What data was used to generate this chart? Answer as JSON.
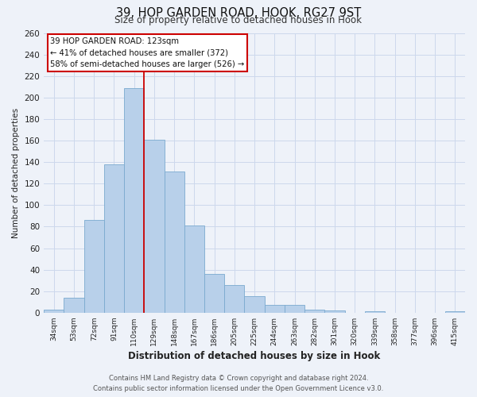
{
  "title": "39, HOP GARDEN ROAD, HOOK, RG27 9ST",
  "subtitle": "Size of property relative to detached houses in Hook",
  "xlabel": "Distribution of detached houses by size in Hook",
  "ylabel": "Number of detached properties",
  "bar_labels": [
    "34sqm",
    "53sqm",
    "72sqm",
    "91sqm",
    "110sqm",
    "129sqm",
    "148sqm",
    "167sqm",
    "186sqm",
    "205sqm",
    "225sqm",
    "244sqm",
    "263sqm",
    "282sqm",
    "301sqm",
    "320sqm",
    "339sqm",
    "358sqm",
    "377sqm",
    "396sqm",
    "415sqm"
  ],
  "bar_values": [
    3,
    14,
    86,
    138,
    209,
    161,
    131,
    81,
    36,
    26,
    15,
    7,
    7,
    3,
    2,
    0,
    1,
    0,
    0,
    0,
    1
  ],
  "bar_color": "#b8d0ea",
  "bar_edge_color": "#7aaacf",
  "background_color": "#eef2f9",
  "grid_color": "#ccd8ec",
  "vline_x_index": 5,
  "vline_color": "#cc0000",
  "annotation_title": "39 HOP GARDEN ROAD: 123sqm",
  "annotation_line1": "← 41% of detached houses are smaller (372)",
  "annotation_line2": "58% of semi-detached houses are larger (526) →",
  "annotation_box_color": "#ffffff",
  "annotation_box_edge": "#cc0000",
  "ylim": [
    0,
    260
  ],
  "yticks": [
    0,
    20,
    40,
    60,
    80,
    100,
    120,
    140,
    160,
    180,
    200,
    220,
    240,
    260
  ],
  "footer_line1": "Contains HM Land Registry data © Crown copyright and database right 2024.",
  "footer_line2": "Contains public sector information licensed under the Open Government Licence v3.0."
}
